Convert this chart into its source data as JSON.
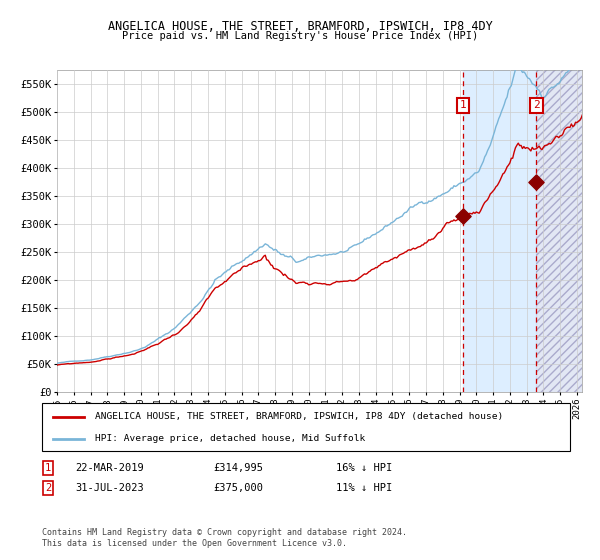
{
  "title_line1": "ANGELICA HOUSE, THE STREET, BRAMFORD, IPSWICH, IP8 4DY",
  "title_line2": "Price paid vs. HM Land Registry's House Price Index (HPI)",
  "legend_label1": "ANGELICA HOUSE, THE STREET, BRAMFORD, IPSWICH, IP8 4DY (detached house)",
  "legend_label2": "HPI: Average price, detached house, Mid Suffolk",
  "annotation1": {
    "num": "1",
    "date": "22-MAR-2019",
    "price": "£314,995",
    "pct": "16% ↓ HPI"
  },
  "annotation2": {
    "num": "2",
    "date": "31-JUL-2023",
    "price": "£375,000",
    "pct": "11% ↓ HPI"
  },
  "y_ticks": [
    0,
    50000,
    100000,
    150000,
    200000,
    250000,
    300000,
    350000,
    400000,
    450000,
    500000,
    550000
  ],
  "y_tick_labels": [
    "£0",
    "£50K",
    "£100K",
    "£150K",
    "£200K",
    "£250K",
    "£300K",
    "£350K",
    "£400K",
    "£450K",
    "£500K",
    "£550K"
  ],
  "hpi_color": "#7ab5d8",
  "price_color": "#cc0000",
  "dashed_line_color": "#cc0000",
  "shade_color": "#ddeeff",
  "marker_color": "#8b0000",
  "box_color": "#cc0000",
  "copyright_text": "Contains HM Land Registry data © Crown copyright and database right 2024.\nThis data is licensed under the Open Government Licence v3.0.",
  "transaction1_year": 2019.22,
  "transaction1_price": 314995,
  "transaction2_year": 2023.58,
  "transaction2_price": 375000,
  "ylim_max": 575000
}
